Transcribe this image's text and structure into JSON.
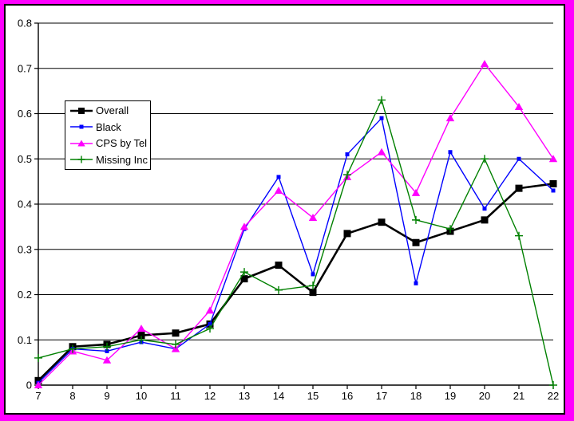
{
  "colors": {
    "frame_border": "#FF00FF",
    "plot_background": "#FFFFFF",
    "axis": "#000000",
    "gridline": "#000000",
    "legend_border": "#000000"
  },
  "chart_data": {
    "type": "line",
    "title": "",
    "xlabel": "",
    "ylabel": "",
    "x": [
      7,
      8,
      9,
      10,
      11,
      12,
      13,
      14,
      15,
      16,
      17,
      18,
      19,
      20,
      21,
      22
    ],
    "ylim": [
      0,
      0.8
    ],
    "ytick_step": 0.1,
    "y_tick_labels": [
      "0",
      "0.1",
      "0.2",
      "0.3",
      "0.4",
      "0.5",
      "0.6",
      "0.7",
      "0.8"
    ],
    "grid": "horizontal",
    "legend_position": "upper-left-inside",
    "series": [
      {
        "name": "Overall",
        "color": "#000000",
        "marker": "filled-square",
        "line_width": 2.6,
        "values": [
          0.01,
          0.085,
          0.09,
          0.11,
          0.115,
          0.135,
          0.235,
          0.265,
          0.205,
          0.335,
          0.36,
          0.315,
          0.34,
          0.365,
          0.435,
          0.445
        ]
      },
      {
        "name": "Black",
        "color": "#0000FF",
        "marker": "small-square",
        "line_width": 1.4,
        "values": [
          0.005,
          0.08,
          0.075,
          0.095,
          0.08,
          0.135,
          0.345,
          0.46,
          0.245,
          0.51,
          0.59,
          0.225,
          0.515,
          0.39,
          0.5,
          0.43
        ]
      },
      {
        "name": "CPS by Tel",
        "color": "#FF00FF",
        "marker": "filled-triangle",
        "line_width": 1.4,
        "values": [
          0,
          0.075,
          0.055,
          0.125,
          0.08,
          0.165,
          0.35,
          0.43,
          0.37,
          0.46,
          0.515,
          0.425,
          0.59,
          0.71,
          0.615,
          0.5
        ]
      },
      {
        "name": "Missing Inc",
        "color": "#008000",
        "marker": "plus",
        "line_width": 1.4,
        "values": [
          0.06,
          0.08,
          0.085,
          0.1,
          0.09,
          0.125,
          0.25,
          0.21,
          0.22,
          0.465,
          0.63,
          0.365,
          0.345,
          0.5,
          0.33,
          0
        ]
      }
    ]
  }
}
